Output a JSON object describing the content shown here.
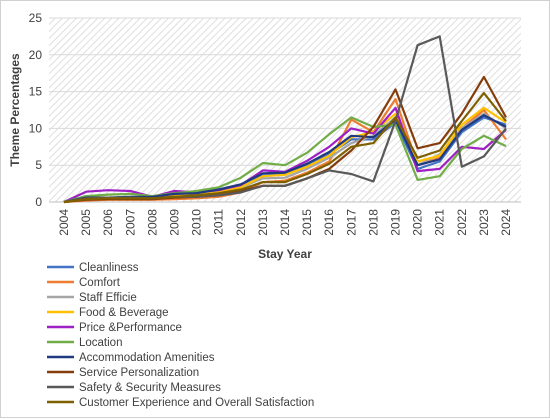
{
  "chart_data": {
    "type": "line",
    "title": "",
    "xlabel": "Stay Year",
    "ylabel": "Theme Percentages",
    "ylim": [
      0,
      25
    ],
    "yticks": [
      0,
      5,
      10,
      15,
      20,
      25
    ],
    "grid": "horizontal, hatched plot area",
    "legend_position": "bottom",
    "categories": [
      "2004",
      "2005",
      "2006",
      "2007",
      "2008",
      "2009",
      "2010",
      "2011",
      "2012",
      "2013",
      "2014",
      "2015",
      "2016",
      "2017",
      "2018",
      "2019",
      "2020",
      "2021",
      "2022",
      "2023",
      "2024"
    ],
    "series": [
      {
        "name": "Cleanliness",
        "color": "#4472c4",
        "values": [
          0,
          0.5,
          0.6,
          0.6,
          0.6,
          1.0,
          1.1,
          1.5,
          2.2,
          3.6,
          3.8,
          5.0,
          6.5,
          8.5,
          8.5,
          10.8,
          4.5,
          5.5,
          9.5,
          11.5,
          10.5
        ]
      },
      {
        "name": "Comfort",
        "color": "#ed7d31",
        "values": [
          0,
          0.2,
          0.3,
          0.3,
          0.3,
          0.4,
          0.5,
          0.7,
          1.3,
          2.7,
          2.9,
          4.0,
          5.5,
          11.2,
          9.5,
          14.0,
          5.0,
          6.0,
          10.0,
          12.5,
          8.5
        ]
      },
      {
        "name": "Staff Efficie",
        "color": "#a5a5a5",
        "values": [
          0,
          0.4,
          0.5,
          0.5,
          0.5,
          0.8,
          1.0,
          1.3,
          2.0,
          3.2,
          3.3,
          4.5,
          6.0,
          8.0,
          9.0,
          11.5,
          5.0,
          6.5,
          10.0,
          12.0,
          10.0
        ]
      },
      {
        "name": "Food & Beverage",
        "color": "#ffc000",
        "values": [
          0,
          0.4,
          0.5,
          0.6,
          0.5,
          0.8,
          1.0,
          1.4,
          2.0,
          3.5,
          3.7,
          4.8,
          6.3,
          8.8,
          9.5,
          12.0,
          5.5,
          6.3,
          10.5,
          12.8,
          10.8
        ]
      },
      {
        "name": "Price &Performance",
        "color": "#9e1fc4",
        "values": [
          0,
          1.4,
          1.6,
          1.5,
          0.7,
          1.5,
          1.3,
          1.6,
          2.3,
          4.3,
          4.1,
          5.6,
          7.5,
          10.0,
          9.3,
          12.8,
          4.2,
          4.5,
          7.5,
          7.2,
          9.8
        ]
      },
      {
        "name": "Location",
        "color": "#70ad47",
        "values": [
          0,
          0.8,
          1.0,
          1.1,
          0.8,
          1.2,
          1.5,
          2.0,
          3.3,
          5.3,
          5.0,
          6.7,
          9.2,
          11.5,
          10.2,
          10.5,
          3.0,
          3.5,
          7.2,
          9.0,
          7.6
        ]
      },
      {
        "name": "Accommodation Amenities",
        "color": "#1f3a80",
        "values": [
          0,
          0.6,
          0.6,
          0.7,
          0.7,
          1.1,
          1.2,
          1.7,
          2.4,
          3.9,
          4.0,
          5.2,
          6.8,
          9.0,
          8.8,
          11.2,
          5.0,
          5.8,
          9.8,
          11.8,
          10.2
        ]
      },
      {
        "name": "Service Personalization",
        "color": "#843c0c",
        "values": [
          0,
          0.3,
          0.4,
          0.4,
          0.4,
          0.6,
          0.7,
          1.0,
          1.5,
          2.2,
          2.2,
          3.2,
          4.5,
          7.0,
          10.2,
          15.3,
          7.3,
          8.0,
          12.0,
          17.0,
          11.5
        ]
      },
      {
        "name": "Safety & Security Measures",
        "color": "#595959",
        "values": [
          0,
          0.5,
          0.6,
          0.6,
          0.5,
          0.7,
          0.7,
          0.9,
          1.3,
          2.2,
          2.2,
          3.2,
          4.3,
          3.8,
          2.8,
          11.0,
          21.3,
          22.5,
          4.8,
          6.2,
          10.0
        ]
      },
      {
        "name": "Customer Experience and Overall Satisfaction",
        "color": "#7f6000",
        "values": [
          0,
          0.4,
          0.5,
          0.5,
          0.5,
          0.7,
          0.9,
          1.2,
          1.7,
          2.7,
          2.7,
          3.8,
          5.2,
          7.5,
          8.0,
          11.5,
          6.0,
          7.0,
          11.0,
          14.8,
          11.0
        ]
      }
    ]
  }
}
